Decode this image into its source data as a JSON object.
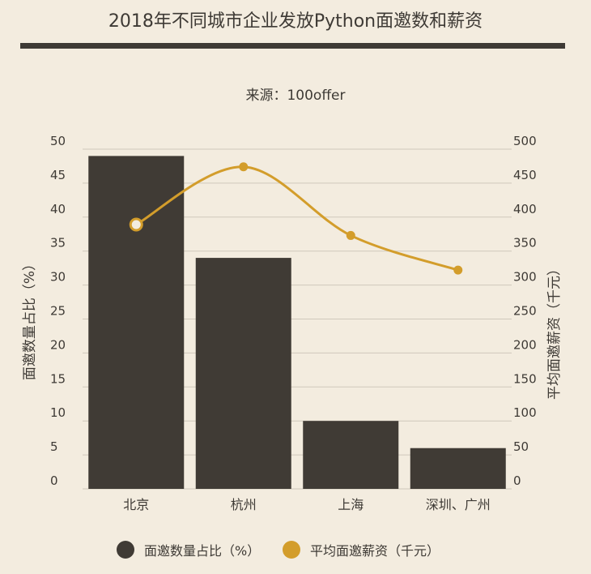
{
  "title": "2018年不同城市企业发放Python面邀数和薪资",
  "subtitle": "来源：100offer",
  "colors": {
    "background": "#f3ecdf",
    "bar": "#403b35",
    "line": "#d39d2b",
    "grid": "#cfc8bb",
    "text": "#3e3a35"
  },
  "legend": {
    "bar_label": "面邀数量占比（%）",
    "line_label": "平均面邀薪资（千元）"
  },
  "chart_data": {
    "type": "bar+line",
    "title": "2018年不同城市企业发放Python面邀数和薪资",
    "subtitle": "来源：100offer",
    "categories": [
      "北京",
      "杭州",
      "上海",
      "深圳、广州"
    ],
    "ylabel_left": "面邀数量占比（%）",
    "ylabel_right": "平均面邀薪资（千元）",
    "ylim_left": [
      0,
      50
    ],
    "ylim_right": [
      0,
      500
    ],
    "yticks_left": [
      "0",
      "5",
      "10",
      "15",
      "20",
      "25",
      "30",
      "35",
      "40",
      "45",
      "50"
    ],
    "yticks_right": [
      "0",
      "50",
      "100",
      "150",
      "200",
      "250",
      "300",
      "350",
      "400",
      "450",
      "500"
    ],
    "grid": true,
    "legend_position": "bottom",
    "series": [
      {
        "name": "面邀数量占比（%）",
        "type": "bar",
        "axis": "left",
        "values": [
          49,
          34,
          10,
          6
        ]
      },
      {
        "name": "平均面邀薪资（千元）",
        "type": "line",
        "axis": "right",
        "smooth": true,
        "values": [
          389,
          474,
          373,
          322
        ]
      }
    ]
  }
}
